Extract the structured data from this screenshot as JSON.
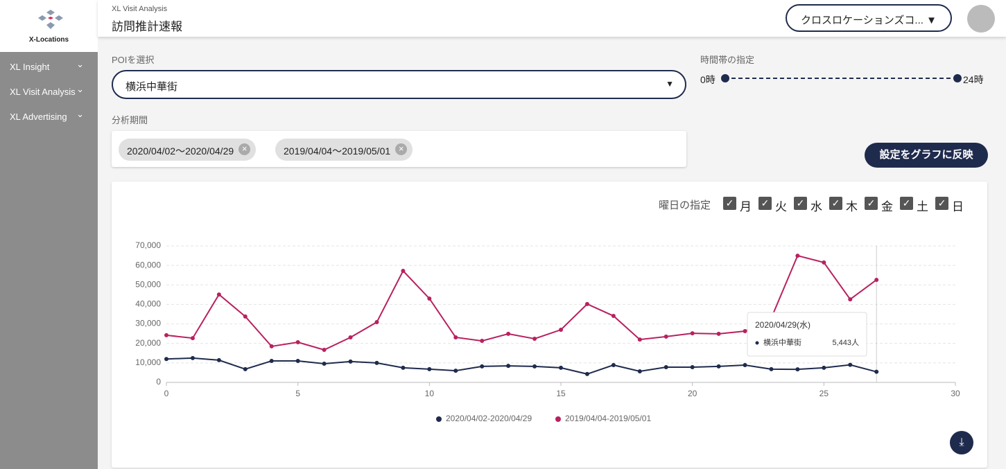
{
  "sidebar": {
    "logo": "X-Locations",
    "nav": [
      "XL Insight",
      "XL Visit Analysis",
      "XL Advertising"
    ]
  },
  "header": {
    "subtitle": "XL Visit Analysis",
    "title": "訪問推計速報",
    "account": "クロスロケーションズコ..."
  },
  "form": {
    "poi_label": "POIを選択",
    "poi_value": "横浜中華街",
    "time_label": "時間帯の指定",
    "time_start": "0時",
    "time_end": "24時",
    "period_label": "分析期間",
    "periods": [
      "2020/04/02〜2020/04/29",
      "2019/04/04〜2019/05/01"
    ],
    "apply_button": "設定をグラフに反映",
    "weekday_label": "曜日の指定",
    "weekdays": [
      "月",
      "火",
      "水",
      "木",
      "金",
      "土",
      "日"
    ]
  },
  "chart_data": {
    "type": "line",
    "x": [
      0,
      1,
      2,
      3,
      4,
      5,
      6,
      7,
      8,
      9,
      10,
      11,
      12,
      13,
      14,
      15,
      16,
      17,
      18,
      19,
      20,
      21,
      22,
      23,
      24,
      25,
      26,
      27
    ],
    "series": [
      {
        "name": "2020/04/02-2020/04/29",
        "color": "#1f2b4d",
        "values": [
          12000,
          12500,
          11400,
          6800,
          11000,
          11000,
          9600,
          10700,
          10000,
          7500,
          6800,
          6000,
          8200,
          8500,
          8200,
          7500,
          4300,
          8900,
          5700,
          7800,
          7800,
          8200,
          8900,
          6800,
          6700,
          7500,
          9000,
          5443
        ]
      },
      {
        "name": "2019/04/04-2019/05/01",
        "color": "#b8215f",
        "values": [
          24200,
          22700,
          45100,
          33800,
          18500,
          20600,
          16700,
          23100,
          30900,
          57200,
          43000,
          23100,
          21300,
          24900,
          22400,
          27000,
          40200,
          34100,
          22000,
          23500,
          25200,
          24900,
          26300,
          33000,
          65000,
          61500,
          42600,
          52600
        ]
      }
    ],
    "xlim": [
      0,
      30
    ],
    "xticks": [
      0,
      5,
      10,
      15,
      20,
      25,
      30
    ],
    "ylim": [
      0,
      70000
    ],
    "yticks": [
      0,
      {
        "value": 10000,
        "label": "10,000"
      },
      {
        "value": 20000,
        "label": "20,000"
      },
      {
        "value": 30000,
        "label": "30,000"
      },
      {
        "value": 40000,
        "label": "40,000"
      },
      {
        "value": 50000,
        "label": "50,000"
      },
      {
        "value": 60000,
        "label": "60,000"
      },
      {
        "value": 70000,
        "label": "70,000"
      }
    ],
    "grid": true,
    "legend": "bottom",
    "tooltip": {
      "title": "2020/04/29(水)",
      "name": "横浜中華街",
      "value_label": "5,443人"
    }
  }
}
